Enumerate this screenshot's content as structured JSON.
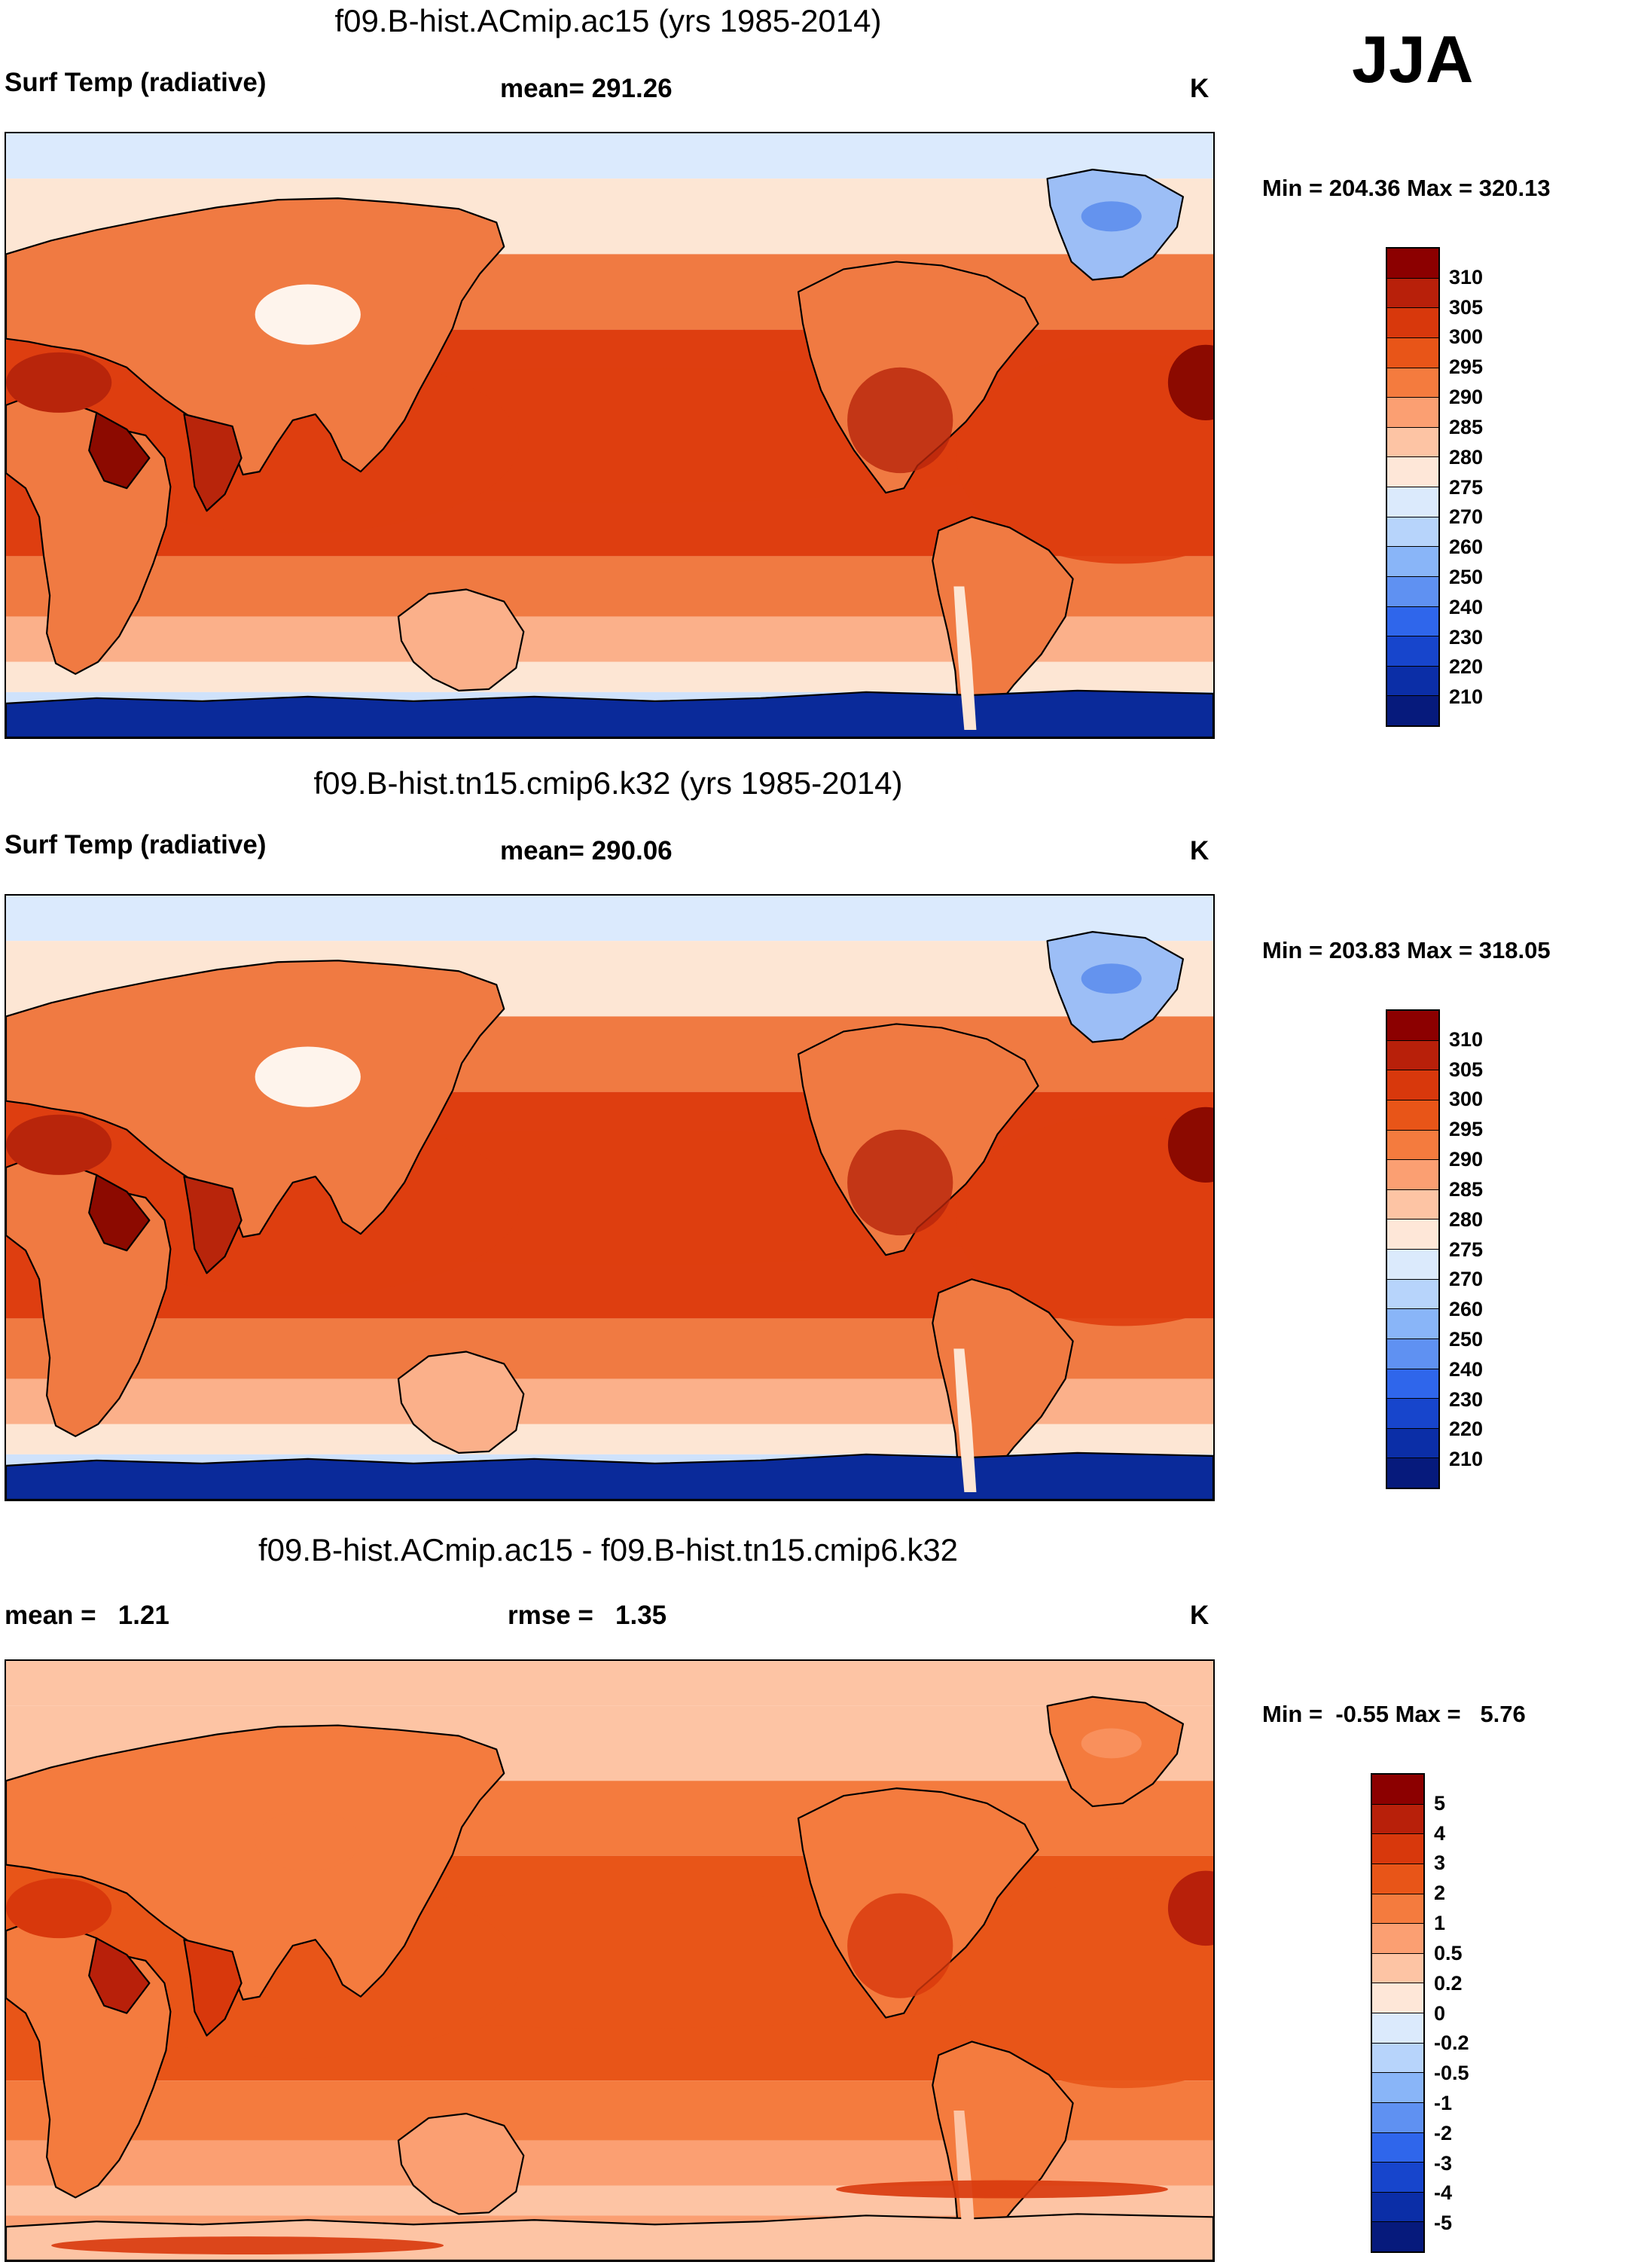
{
  "season": "JJA",
  "panels": [
    {
      "title": "f09.B-hist.ACmip.ac15 (yrs 1985-2014)",
      "left_label": "Surf Temp (radiative)",
      "center_label": "mean= 291.26",
      "units": "K",
      "minmax": "Min = 204.36 Max = 320.13",
      "colorbar": {
        "ticks": [
          "310",
          "305",
          "300",
          "295",
          "290",
          "285",
          "280",
          "275",
          "270",
          "260",
          "250",
          "240",
          "230",
          "220",
          "210"
        ],
        "colors": [
          "#8c0000",
          "#b8200a",
          "#d8380c",
          "#e85518",
          "#f47b3e",
          "#fb9f72",
          "#fdc4a4",
          "#fee7d8",
          "#dbeafc",
          "#b7d4fb",
          "#89b5f8",
          "#5f91f2",
          "#2f66eb",
          "#1745cc",
          "#0b2ea7",
          "#061a7c"
        ]
      },
      "map_colors": {
        "ice": "#0a2a9a",
        "cold": "#3f77ea",
        "cool": "#cfe2fb",
        "pale": "#fde6d4",
        "mild": "#fbb08a",
        "warm": "#f07a42",
        "hot": "#de3e10",
        "hotter": "#b8250b",
        "hottest": "#8c0a00",
        "greenland": "#9cbef6",
        "tibet": "#fef4ec",
        "sea_ice": "#dbeafd"
      }
    },
    {
      "title": "f09.B-hist.tn15.cmip6.k32 (yrs 1985-2014)",
      "left_label": "Surf Temp (radiative)",
      "center_label": "mean= 290.06",
      "units": "K",
      "minmax": "Min = 203.83 Max = 318.05",
      "colorbar": {
        "ticks": [
          "310",
          "305",
          "300",
          "295",
          "290",
          "285",
          "280",
          "275",
          "270",
          "260",
          "250",
          "240",
          "230",
          "220",
          "210"
        ],
        "colors": [
          "#8c0000",
          "#b8200a",
          "#d8380c",
          "#e85518",
          "#f47b3e",
          "#fb9f72",
          "#fdc4a4",
          "#fee7d8",
          "#dbeafc",
          "#b7d4fb",
          "#89b5f8",
          "#5f91f2",
          "#2f66eb",
          "#1745cc",
          "#0b2ea7",
          "#061a7c"
        ]
      },
      "map_colors": {
        "ice": "#0a2a9a",
        "cold": "#3f77ea",
        "cool": "#cfe2fb",
        "pale": "#fde6d4",
        "mild": "#fbb08a",
        "warm": "#f07a42",
        "hot": "#de3e10",
        "hotter": "#b8250b",
        "hottest": "#8c0a00",
        "greenland": "#9cbef6",
        "tibet": "#fef4ec",
        "sea_ice": "#dbeafd"
      }
    },
    {
      "title": "f09.B-hist.ACmip.ac15 - f09.B-hist.tn15.cmip6.k32",
      "left_label": "mean =   1.21",
      "center_label": "rmse =   1.35",
      "units": "K",
      "minmax": "Min =  -0.55 Max =   5.76",
      "colorbar": {
        "ticks": [
          "5",
          "4",
          "3",
          "2",
          "1",
          "0.5",
          "0.2",
          "0",
          "-0.2",
          "-0.5",
          "-1",
          "-2",
          "-3",
          "-4",
          "-5"
        ],
        "colors": [
          "#8c0000",
          "#b8200a",
          "#d8380c",
          "#e85518",
          "#f47b3e",
          "#fb9f72",
          "#fdc4a4",
          "#fee7d8",
          "#dbeafc",
          "#b7d4fb",
          "#89b5f8",
          "#5f91f2",
          "#2f66eb",
          "#1745cc",
          "#0b2ea7",
          "#061a7c"
        ]
      },
      "map_colors": {
        "ice": "#fdc4a4",
        "cold": "#fb9f72",
        "cool": "#fb9f72",
        "pale": "#fdc4a4",
        "mild": "#fb9f72",
        "warm": "#f47b3e",
        "hot": "#e85518",
        "hotter": "#d8380c",
        "hottest": "#b8200a",
        "greenland": "#f47b3e",
        "tibet": "#f47b3e",
        "sea_ice": "#fdc4a4"
      }
    }
  ]
}
